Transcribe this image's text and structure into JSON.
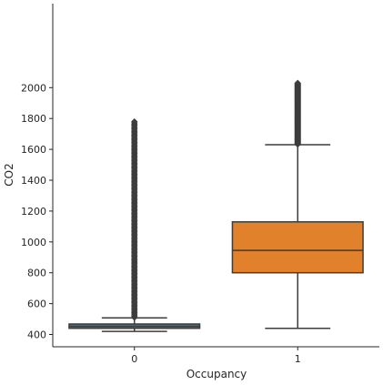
{
  "chart_data": {
    "type": "box",
    "xlabel": "Occupancy",
    "ylabel": "CO2",
    "ylim": [
      350,
      2110
    ],
    "yticks": [
      400,
      600,
      800,
      1000,
      1200,
      1400,
      1600,
      1800,
      2000
    ],
    "categories": [
      "0",
      "1"
    ],
    "grid": false,
    "boxes": [
      {
        "category": "0",
        "color": "#3274a1",
        "whisker_low": 420,
        "q1": 440,
        "median": 452,
        "q3": 468,
        "whisker_high": 508,
        "outliers_range": [
          510,
          1780
        ]
      },
      {
        "category": "1",
        "color": "#e1812c",
        "whisker_low": 440,
        "q1": 800,
        "median": 945,
        "q3": 1130,
        "whisker_high": 1630,
        "outliers_range": [
          1632,
          2030
        ]
      }
    ]
  }
}
